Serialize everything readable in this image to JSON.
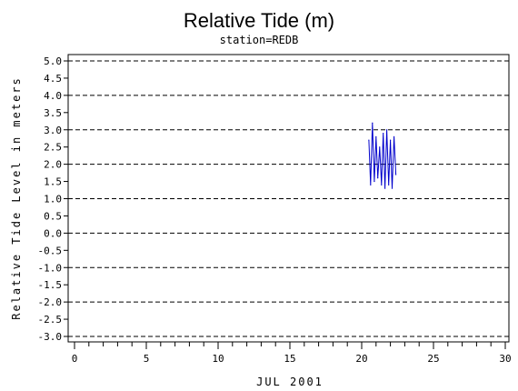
{
  "chart_data": {
    "type": "line",
    "title": "Relative Tide (m)",
    "subtitle": "station=REDB",
    "xlabel": "JUL 2001",
    "ylabel": "Relative Tide Level in meters",
    "xlim": [
      0,
      30
    ],
    "ylim": [
      -3.0,
      5.0
    ],
    "x_ticks": [
      "0",
      "5",
      "10",
      "15",
      "20",
      "25",
      "30"
    ],
    "y_ticks": [
      "5.0",
      "4.5",
      "4.0",
      "3.5",
      "3.0",
      "2.5",
      "2.0",
      "1.5",
      "1.0",
      "0.5",
      "0.0",
      "-0.5",
      "-1.0",
      "-1.5",
      "-2.0",
      "-2.5",
      "-3.0"
    ],
    "grid_y_dashed_at": [
      5.0,
      4.0,
      3.0,
      2.0,
      1.0,
      0.0,
      -1.0,
      -2.0,
      -3.0
    ],
    "series": [
      {
        "color": "#0000cc",
        "x": [
          20.5,
          20.62,
          20.75,
          20.88,
          21.0,
          21.12,
          21.25,
          21.38,
          21.5,
          21.62,
          21.75,
          21.88,
          22.0,
          22.12,
          22.25,
          22.38
        ],
        "y": [
          2.7,
          1.4,
          3.2,
          1.5,
          2.8,
          1.6,
          2.5,
          1.4,
          2.9,
          1.3,
          3.0,
          1.4,
          2.7,
          1.3,
          2.8,
          1.7
        ]
      }
    ]
  }
}
